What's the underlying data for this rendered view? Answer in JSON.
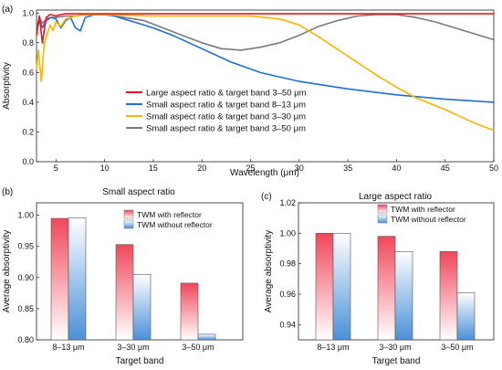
{
  "chart_data": [
    {
      "panel_label": "(a)",
      "type": "line",
      "title": "",
      "xlabel": "Wavelength (μm)",
      "ylabel": "Absorptivity",
      "xlim": [
        3,
        50
      ],
      "ylim": [
        0,
        1.02
      ],
      "xticks": [
        5,
        10,
        15,
        20,
        25,
        30,
        35,
        40,
        45,
        50
      ],
      "yticks": [
        0.0,
        0.2,
        0.4,
        0.6,
        0.8,
        1.0
      ],
      "ytick_labels": [
        "0.0",
        "0.2",
        "0.4",
        "0.6",
        "0.8",
        "1.0"
      ],
      "legend_position": "center",
      "series": [
        {
          "name": "Large aspect ratio & target band 3–50 μm",
          "color": "#e8141c",
          "x": [
            3,
            3.3,
            3.6,
            4,
            4.4,
            5,
            5.5,
            6,
            7,
            8,
            10,
            15,
            20,
            25,
            30,
            35,
            40,
            45,
            50
          ],
          "y": [
            0.85,
            0.98,
            0.8,
            0.97,
            0.99,
            0.98,
            0.99,
            0.995,
            0.995,
            0.995,
            0.995,
            0.995,
            0.995,
            0.995,
            0.995,
            0.995,
            0.995,
            0.995,
            0.995
          ]
        },
        {
          "name": "Small aspect ratio & target band 8–13 μm",
          "color": "#1f6fd1",
          "x": [
            3,
            3.3,
            3.6,
            4,
            4.5,
            5,
            5.5,
            6,
            6.5,
            7,
            7.5,
            8,
            9,
            10,
            11,
            12,
            13,
            15,
            17,
            20,
            23,
            26,
            30,
            35,
            40,
            45,
            50
          ],
          "y": [
            0.88,
            0.95,
            0.9,
            0.95,
            0.97,
            0.96,
            0.9,
            0.95,
            0.97,
            0.9,
            0.88,
            0.97,
            0.99,
            0.99,
            0.98,
            0.96,
            0.94,
            0.9,
            0.85,
            0.76,
            0.67,
            0.6,
            0.54,
            0.49,
            0.45,
            0.42,
            0.4
          ]
        },
        {
          "name": "Small aspect ratio & target band 3–30 μm",
          "color": "#f7b500",
          "x": [
            3,
            3.2,
            3.5,
            3.8,
            4.1,
            4.4,
            4.7,
            5.0,
            5.5,
            6,
            7,
            8,
            10,
            15,
            20,
            25,
            28,
            30,
            32,
            35,
            38,
            40,
            42,
            45,
            48,
            50
          ],
          "y": [
            0.62,
            0.75,
            0.54,
            0.8,
            0.86,
            0.92,
            0.88,
            0.94,
            0.91,
            0.96,
            0.98,
            0.99,
            0.99,
            0.98,
            0.98,
            0.98,
            0.96,
            0.92,
            0.84,
            0.71,
            0.58,
            0.5,
            0.43,
            0.35,
            0.26,
            0.21
          ]
        },
        {
          "name": "Small aspect ratio & target band 3–50 μm",
          "color": "#7a7a7a",
          "x": [
            3,
            3.3,
            3.6,
            4,
            4.5,
            5,
            6,
            7,
            8,
            10,
            12,
            14,
            16,
            18,
            20,
            22,
            24,
            26,
            28,
            30,
            32,
            34,
            36,
            38,
            40,
            42,
            44,
            46,
            48,
            50
          ],
          "y": [
            0.9,
            0.97,
            0.93,
            0.96,
            0.97,
            0.97,
            0.98,
            0.98,
            0.99,
            0.99,
            0.97,
            0.95,
            0.9,
            0.85,
            0.8,
            0.76,
            0.75,
            0.77,
            0.8,
            0.85,
            0.91,
            0.95,
            0.98,
            0.99,
            0.99,
            0.97,
            0.94,
            0.9,
            0.86,
            0.82
          ]
        }
      ]
    },
    {
      "panel_label": "(b)",
      "type": "bar",
      "title": "Small aspect ratio",
      "xlabel": "Target band",
      "ylabel": "Average absorptivity",
      "categories": [
        "8–13 μm",
        "3–30 μm",
        "3–50 μm"
      ],
      "ylim": [
        0.8,
        1.02
      ],
      "yticks": [
        0.8,
        0.85,
        0.9,
        0.95,
        1.0
      ],
      "ytick_labels": [
        "0.80",
        "0.85",
        "0.90",
        "0.95",
        "1.00"
      ],
      "legend_position": "top-right",
      "series": [
        {
          "name": "TWM with reflector",
          "color": "#f0475a",
          "values": [
            0.995,
            0.953,
            0.891
          ]
        },
        {
          "name": "TWM without reflector",
          "color": "#4a90d9",
          "values": [
            0.996,
            0.905,
            0.809
          ]
        }
      ]
    },
    {
      "panel_label": "(c)",
      "type": "bar",
      "title": "Large aspect ratio",
      "xlabel": "Target band",
      "ylabel": "Average absorptivity",
      "categories": [
        "8–13 μm",
        "3–30 μm",
        "3–50 μm"
      ],
      "ylim": [
        0.93,
        1.02
      ],
      "yticks": [
        0.94,
        0.96,
        0.98,
        1.0,
        1.02
      ],
      "ytick_labels": [
        "0.94",
        "0.96",
        "0.98",
        "1.00",
        "1.02"
      ],
      "legend_position": "top-right",
      "series": [
        {
          "name": "TWM with reflector",
          "color": "#f0475a",
          "values": [
            1.0,
            0.998,
            0.988
          ]
        },
        {
          "name": "TWM without reflector",
          "color": "#4a90d9",
          "values": [
            1.0,
            0.988,
            0.961
          ]
        }
      ]
    }
  ]
}
